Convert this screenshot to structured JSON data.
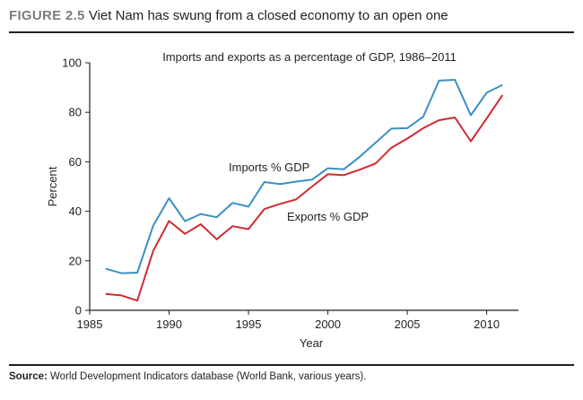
{
  "figure": {
    "label": "FIGURE 2.5",
    "title": "Viet Nam has swung from a closed economy to an open one"
  },
  "source": {
    "label": "Source:",
    "text": "World Development Indicators database (World Bank, various years)."
  },
  "chart_data": {
    "type": "line",
    "title": "Imports and exports as a percentage of GDP, 1986–2011",
    "xlabel": "Year",
    "ylabel": "Percent",
    "xlim": [
      1985,
      2012
    ],
    "ylim": [
      0,
      100
    ],
    "xticks": [
      1985,
      1990,
      1995,
      2000,
      2005,
      2010
    ],
    "yticks": [
      0,
      20,
      40,
      60,
      80,
      100
    ],
    "grid": false,
    "x": [
      1986,
      1987,
      1988,
      1989,
      1990,
      1991,
      1992,
      1993,
      1994,
      1995,
      1996,
      1997,
      1998,
      1999,
      2000,
      2001,
      2002,
      2003,
      2004,
      2005,
      2006,
      2007,
      2008,
      2009,
      2010,
      2011
    ],
    "series": [
      {
        "name": "Imports % GDP",
        "color": "#3a8fc4",
        "values": [
          16.8,
          15.0,
          15.2,
          34.2,
          45.3,
          36.0,
          38.9,
          37.6,
          43.4,
          41.9,
          51.8,
          51.0,
          52.0,
          52.8,
          57.4,
          57.0,
          62.0,
          67.7,
          73.4,
          73.6,
          78.2,
          92.8,
          93.1,
          78.8,
          87.9,
          91.1
        ]
      },
      {
        "name": "Exports % GDP",
        "color": "#d02b2f",
        "values": [
          6.6,
          6.0,
          3.9,
          24.0,
          36.1,
          30.9,
          34.8,
          28.7,
          34.0,
          32.8,
          40.9,
          43.0,
          44.8,
          50.0,
          55.0,
          54.6,
          56.8,
          59.3,
          65.7,
          69.4,
          73.6,
          76.8,
          77.9,
          68.3,
          77.5,
          87.0
        ]
      }
    ]
  }
}
